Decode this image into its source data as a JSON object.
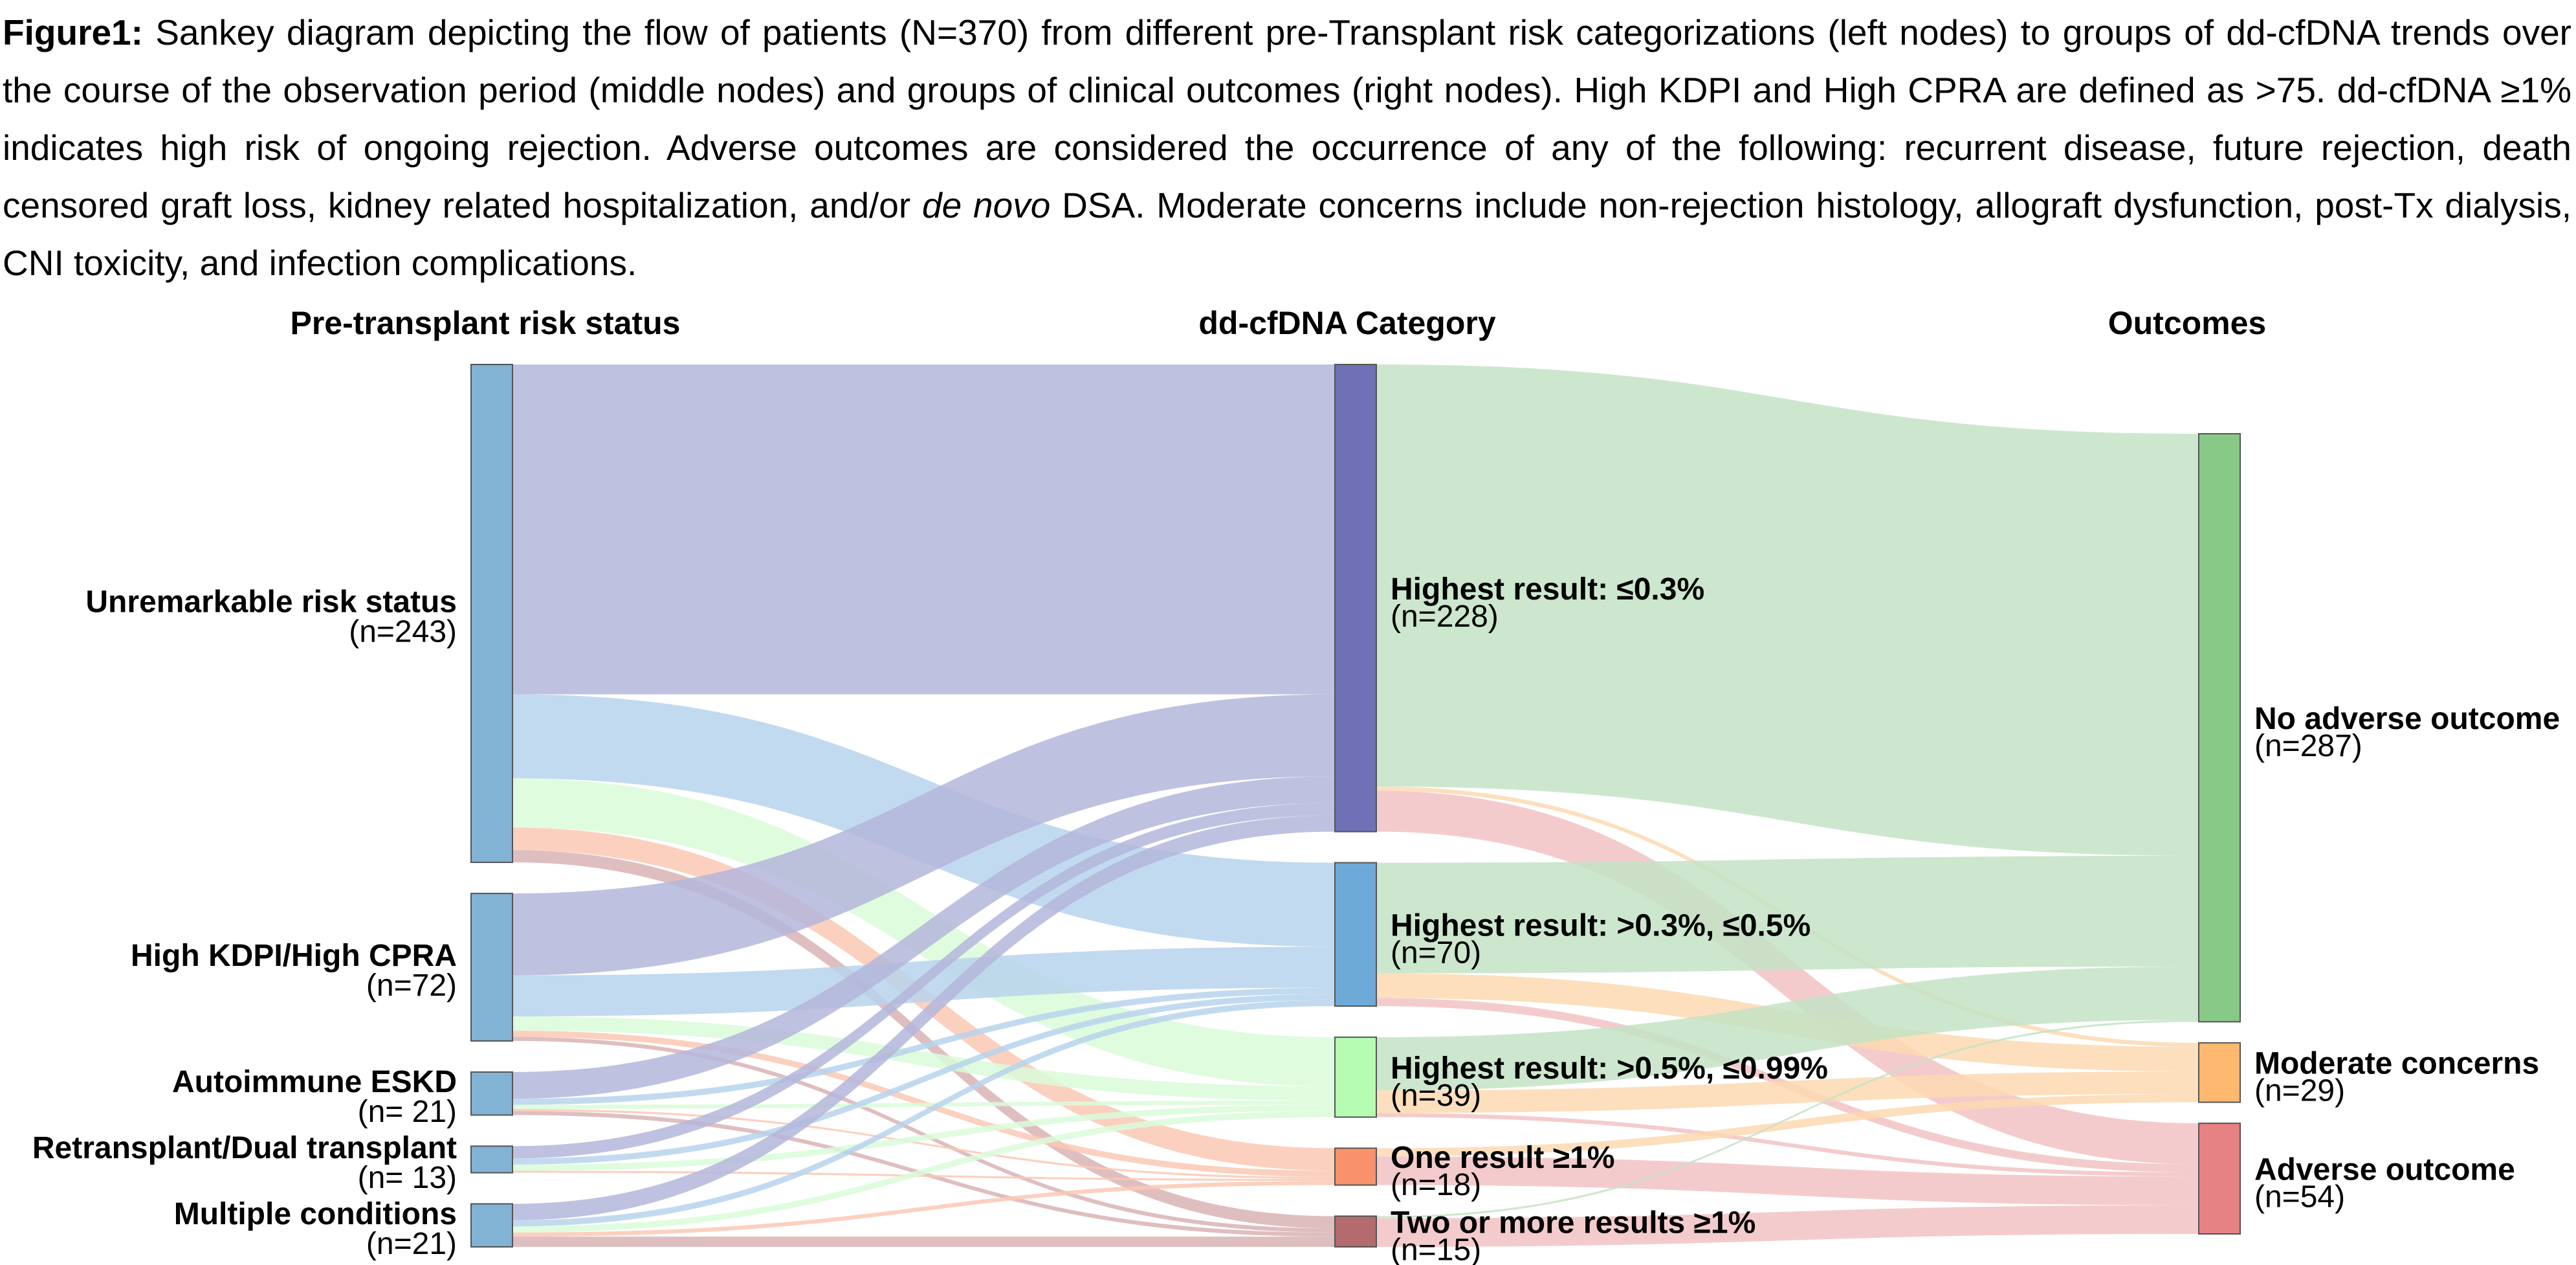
{
  "caption": {
    "label": "Figure1:",
    "segments": [
      {
        "text": " Sankey diagram depicting the flow of patients (N=370) from different pre-Transplant risk categorizations (left nodes) to groups of dd-cfDNA trends over the course of the observation period (middle nodes) and groups of clinical outcomes (right nodes). High KDPI and High CPRA are defined as >75. dd-cfDNA ≥1% indicates high risk of ongoing rejection. Adverse outcomes are considered the occurrence of any of the following: recurrent disease, future rejection, death censored graft loss, kidney related hospitalization, and/or ",
        "italic": false
      },
      {
        "text": "de novo",
        "italic": true
      },
      {
        "text": " DSA. Moderate concerns include non-rejection histology, allograft dysfunction, post-Tx dialysis, CNI toxicity, and infection complications.",
        "italic": false
      }
    ]
  },
  "chart_data": {
    "type": "sankey",
    "title": "",
    "total_n": 370,
    "columns": [
      {
        "title": "Pre-transplant risk status",
        "nodes": [
          "pre_unremarkable",
          "pre_kdpi",
          "pre_autoimmune",
          "pre_retx",
          "pre_multiple"
        ]
      },
      {
        "title": "dd-cfDNA Category",
        "nodes": [
          "dd_le03",
          "dd_03_05",
          "dd_05_099",
          "dd_one",
          "dd_two"
        ]
      },
      {
        "title": "Outcomes",
        "nodes": [
          "out_none",
          "out_moderate",
          "out_adverse"
        ]
      }
    ],
    "nodes": {
      "pre_unremarkable": {
        "label": "Unremarkable risk status",
        "count_label": "(n=243)",
        "value": 243,
        "color": "#82b2d4"
      },
      "pre_kdpi": {
        "label": "High KDPI/High CPRA",
        "count_label": "(n=72)",
        "value": 72,
        "color": "#82b2d4"
      },
      "pre_autoimmune": {
        "label": "Autoimmune ESKD",
        "count_label": "(n= 21)",
        "value": 21,
        "color": "#82b2d4"
      },
      "pre_retx": {
        "label": "Retransplant/Dual transplant",
        "count_label": "(n= 13)",
        "value": 13,
        "color": "#82b2d4"
      },
      "pre_multiple": {
        "label": "Multiple conditions",
        "count_label": "(n=21)",
        "value": 21,
        "color": "#82b2d4"
      },
      "dd_le03": {
        "label": "Highest result: ≤0.3%",
        "count_label": "(n=228)",
        "value": 228,
        "color": "#7070b6",
        "link_color": "#b4b6da"
      },
      "dd_03_05": {
        "label": "Highest result: >0.3%, ≤0.5%",
        "count_label": "(n=70)",
        "value": 70,
        "color": "#6eaad8",
        "link_color": "#b7d4ec"
      },
      "dd_05_099": {
        "label": "Highest result: >0.5%, ≤0.99%",
        "count_label": "(n=39)",
        "value": 39,
        "color": "#b6fbb2",
        "link_color": "#dafcd9"
      },
      "dd_one": {
        "label": "One result ≥1%",
        "count_label": "(n=18)",
        "value": 18,
        "color": "#f9926c",
        "link_color": "#fcc8b4"
      },
      "dd_two": {
        "label": "Two or more results ≥1%",
        "count_label": "(n=15)",
        "value": 15,
        "color": "#b36b6e",
        "link_color": "#d9b3b5"
      },
      "out_none": {
        "label": "No adverse outcome",
        "count_label": "(n=287)",
        "value": 287,
        "color": "#88c988",
        "link_color": "#c3e3c4"
      },
      "out_moderate": {
        "label": "Moderate concerns",
        "count_label": "(n=29)",
        "value": 29,
        "color": "#ffb870",
        "link_color": "#fdd9b2"
      },
      "out_adverse": {
        "label": "Adverse outcome",
        "count_label": "(n=54)",
        "value": 54,
        "color": "#e68184",
        "link_color": "#f2c2c3"
      }
    },
    "links": [
      {
        "source": "pre_unremarkable",
        "target": "dd_le03",
        "value": 161
      },
      {
        "source": "pre_unremarkable",
        "target": "dd_03_05",
        "value": 41
      },
      {
        "source": "pre_unremarkable",
        "target": "dd_05_099",
        "value": 24
      },
      {
        "source": "pre_unremarkable",
        "target": "dd_one",
        "value": 11
      },
      {
        "source": "pre_unremarkable",
        "target": "dd_two",
        "value": 6
      },
      {
        "source": "pre_kdpi",
        "target": "dd_le03",
        "value": 40
      },
      {
        "source": "pre_kdpi",
        "target": "dd_03_05",
        "value": 20
      },
      {
        "source": "pre_kdpi",
        "target": "dd_05_099",
        "value": 7
      },
      {
        "source": "pre_kdpi",
        "target": "dd_one",
        "value": 3
      },
      {
        "source": "pre_kdpi",
        "target": "dd_two",
        "value": 2
      },
      {
        "source": "pre_autoimmune",
        "target": "dd_le03",
        "value": 13
      },
      {
        "source": "pre_autoimmune",
        "target": "dd_03_05",
        "value": 3
      },
      {
        "source": "pre_autoimmune",
        "target": "dd_05_099",
        "value": 2
      },
      {
        "source": "pre_autoimmune",
        "target": "dd_one",
        "value": 1
      },
      {
        "source": "pre_autoimmune",
        "target": "dd_two",
        "value": 2
      },
      {
        "source": "pre_retx",
        "target": "dd_le03",
        "value": 6
      },
      {
        "source": "pre_retx",
        "target": "dd_03_05",
        "value": 3
      },
      {
        "source": "pre_retx",
        "target": "dd_05_099",
        "value": 3
      },
      {
        "source": "pre_retx",
        "target": "dd_one",
        "value": 1
      },
      {
        "source": "pre_multiple",
        "target": "dd_le03",
        "value": 8
      },
      {
        "source": "pre_multiple",
        "target": "dd_03_05",
        "value": 3
      },
      {
        "source": "pre_multiple",
        "target": "dd_05_099",
        "value": 3
      },
      {
        "source": "pre_multiple",
        "target": "dd_one",
        "value": 2
      },
      {
        "source": "pre_multiple",
        "target": "dd_two",
        "value": 5
      },
      {
        "source": "dd_le03",
        "target": "out_none",
        "value": 206
      },
      {
        "source": "dd_le03",
        "target": "out_moderate",
        "value": 2
      },
      {
        "source": "dd_le03",
        "target": "out_adverse",
        "value": 20
      },
      {
        "source": "dd_03_05",
        "target": "out_none",
        "value": 54
      },
      {
        "source": "dd_03_05",
        "target": "out_moderate",
        "value": 12
      },
      {
        "source": "dd_03_05",
        "target": "out_adverse",
        "value": 4
      },
      {
        "source": "dd_05_099",
        "target": "out_none",
        "value": 26
      },
      {
        "source": "dd_05_099",
        "target": "out_moderate",
        "value": 11
      },
      {
        "source": "dd_05_099",
        "target": "out_adverse",
        "value": 2
      },
      {
        "source": "dd_one",
        "target": "out_moderate",
        "value": 4
      },
      {
        "source": "dd_one",
        "target": "out_adverse",
        "value": 14
      },
      {
        "source": "dd_two",
        "target": "out_none",
        "value": 1
      },
      {
        "source": "dd_two",
        "target": "out_adverse",
        "value": 14
      }
    ],
    "node_outline_color": "#555555"
  }
}
